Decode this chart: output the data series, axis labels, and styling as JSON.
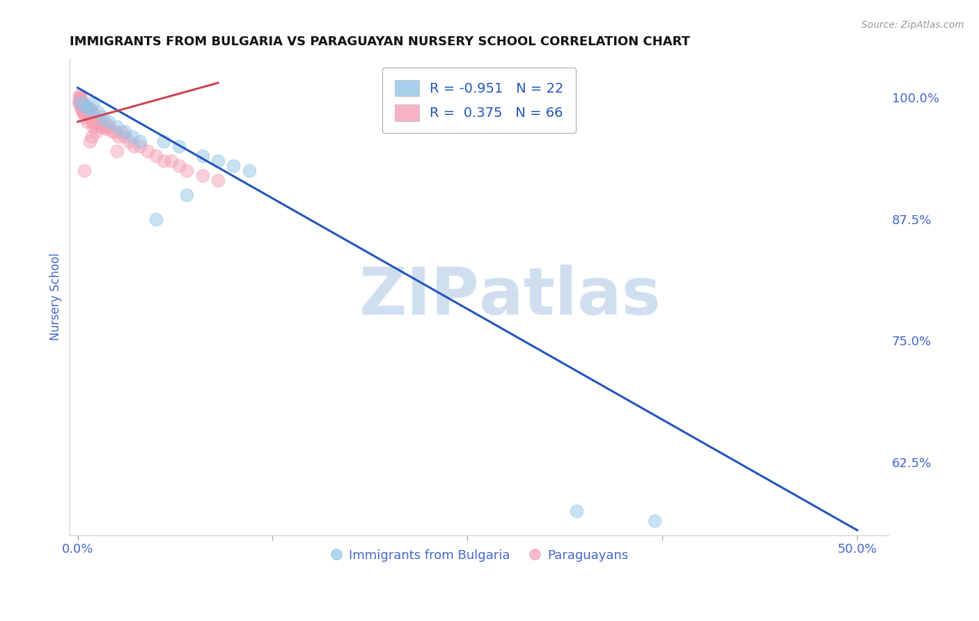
{
  "title": "IMMIGRANTS FROM BULGARIA VS PARAGUAYAN NURSERY SCHOOL CORRELATION CHART",
  "source": "Source: ZipAtlas.com",
  "ylabel": "Nursery School",
  "x_tick_labels": [
    "0.0%",
    "",
    "",
    "",
    "50.0%"
  ],
  "x_tick_positions": [
    0.0,
    12.5,
    25.0,
    37.5,
    50.0
  ],
  "y_tick_labels_right": [
    "100.0%",
    "87.5%",
    "75.0%",
    "62.5%"
  ],
  "y_tick_positions_right": [
    100.0,
    87.5,
    75.0,
    62.5
  ],
  "xlim": [
    -0.5,
    52.0
  ],
  "ylim": [
    55.0,
    104.0
  ],
  "legend_items": [
    {
      "label": "R = -0.951   N = 22",
      "color": "#92C5E8"
    },
    {
      "label": "R =  0.375   N = 66",
      "color": "#F4A0B5"
    }
  ],
  "blue_scatter_x": [
    0.2,
    0.4,
    0.6,
    0.8,
    1.0,
    1.3,
    1.6,
    2.0,
    2.5,
    3.0,
    3.5,
    4.0,
    5.0,
    6.5,
    8.0,
    9.0,
    10.0,
    11.0,
    5.5,
    7.0,
    32.0,
    37.0
  ],
  "blue_scatter_y": [
    99.5,
    99.2,
    99.0,
    98.8,
    99.5,
    98.5,
    98.0,
    97.5,
    97.0,
    96.5,
    96.0,
    95.5,
    87.5,
    95.0,
    94.0,
    93.5,
    93.0,
    92.5,
    95.5,
    90.0,
    57.5,
    56.5
  ],
  "pink_scatter_x": [
    0.05,
    0.1,
    0.12,
    0.15,
    0.18,
    0.2,
    0.22,
    0.25,
    0.28,
    0.3,
    0.32,
    0.35,
    0.38,
    0.4,
    0.42,
    0.45,
    0.48,
    0.5,
    0.55,
    0.6,
    0.65,
    0.7,
    0.75,
    0.8,
    0.85,
    0.9,
    0.95,
    1.0,
    1.1,
    1.2,
    1.3,
    1.4,
    1.5,
    1.6,
    1.7,
    1.8,
    1.9,
    2.0,
    2.2,
    2.4,
    2.6,
    2.8,
    3.0,
    3.3,
    3.6,
    4.0,
    4.5,
    5.0,
    5.5,
    6.0,
    6.5,
    7.0,
    8.0,
    9.0,
    0.15,
    0.3,
    0.5,
    0.7,
    1.0,
    0.4,
    0.8,
    1.2,
    2.5,
    0.1,
    0.6,
    0.9
  ],
  "pink_scatter_y": [
    99.5,
    100.0,
    99.8,
    99.5,
    99.2,
    99.0,
    100.0,
    98.8,
    99.5,
    99.2,
    98.5,
    99.0,
    98.5,
    98.8,
    99.2,
    98.5,
    98.0,
    99.0,
    98.5,
    99.0,
    98.5,
    98.2,
    99.0,
    98.0,
    98.5,
    97.5,
    98.5,
    98.0,
    97.5,
    97.8,
    97.2,
    97.5,
    97.0,
    97.5,
    97.0,
    96.8,
    97.2,
    97.0,
    96.5,
    96.5,
    96.0,
    96.5,
    96.0,
    95.5,
    95.0,
    95.0,
    94.5,
    94.0,
    93.5,
    93.5,
    93.0,
    92.5,
    92.0,
    91.5,
    99.8,
    99.2,
    98.8,
    98.5,
    97.0,
    92.5,
    95.5,
    96.5,
    94.5,
    100.2,
    97.5,
    96.0
  ],
  "blue_line_x": [
    0.0,
    50.0
  ],
  "blue_line_y": [
    101.0,
    55.5
  ],
  "pink_line_x": [
    0.0,
    9.0
  ],
  "pink_line_y": [
    97.5,
    101.5
  ],
  "scatter_size": 180,
  "blue_color": "#92C5E8",
  "pink_color": "#F4A0B5",
  "blue_line_color": "#2255BB",
  "pink_line_color": "#CC4455",
  "watermark_top": "ZIP",
  "watermark_bottom": "atlas",
  "watermark_color": "#D0DFF0",
  "background_color": "#FFFFFF",
  "grid_color": "#CCCCCC",
  "title_fontsize": 13,
  "axis_label_color": "#4466CC",
  "tick_label_color": "#4466CC",
  "bottom_legend_blue_label": "Immigrants from Bulgaria",
  "bottom_legend_pink_label": "Paraguayans"
}
